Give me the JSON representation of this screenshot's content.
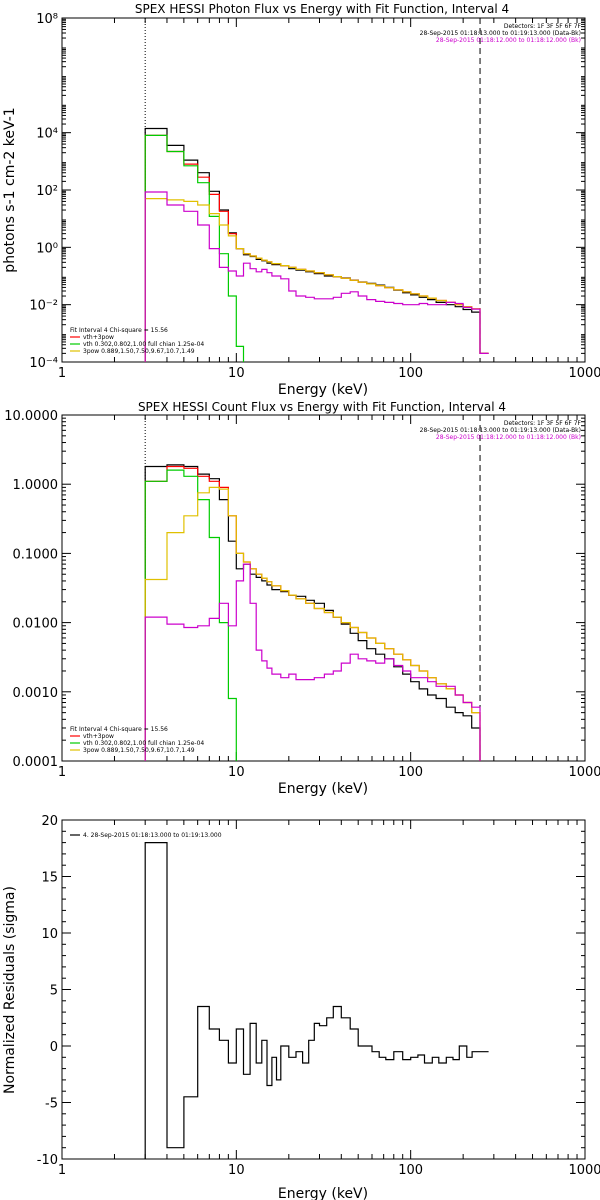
{
  "colors": {
    "data": "#000000",
    "total": "#ff0000",
    "vth": "#00cc00",
    "pow": "#e0c000",
    "bkg": "#cc00cc"
  },
  "chart_data": [
    {
      "type": "line",
      "title": "SPEX HESSI Photon Flux vs Energy with Fit Function, Interval 4",
      "xlabel": "Energy (keV)",
      "ylabel": "photons s-1 cm-2 keV-1",
      "xscale": "log",
      "yscale": "log",
      "xlim": [
        1,
        1000
      ],
      "ylim": [
        0.0001,
        100000000
      ],
      "xticks": [
        {
          "v": 1,
          "t": "1"
        },
        {
          "v": 10,
          "t": "10"
        },
        {
          "v": 100,
          "t": "100"
        },
        {
          "v": 1000,
          "t": "1000"
        }
      ],
      "yticks": [
        {
          "v": 0.0001,
          "t": "10⁻⁴"
        },
        {
          "v": 0.01,
          "t": "10⁻²"
        },
        {
          "v": 1,
          "t": "10⁰"
        },
        {
          "v": 100,
          "t": "10²"
        },
        {
          "v": 10000,
          "t": "10⁴"
        },
        {
          "v": 100000000,
          "t": "10⁸"
        }
      ],
      "vlines": [
        {
          "x": 3,
          "style": "dotted"
        },
        {
          "x": 250,
          "style": "dashed"
        }
      ],
      "header_right": [
        "Detectors: 1F 3F 5F 6F 7F",
        "28-Sep-2015 01:18:13.000 to 01:19:13.000 (Data-Bk)",
        "28-Sep-2015 01:18:12.000 to 01:18:12.000 (Bk)"
      ],
      "header_right_colors": [
        "#000000",
        "#000000",
        "#cc00cc"
      ],
      "legend_title": "Fit Interval 4   Chi-square = 15.56",
      "legend": [
        {
          "label": "vth+3pow",
          "color": "#ff0000"
        },
        {
          "label": "vth 0.302,0.802,1.00  full chian 1.25e-04",
          "color": "#00cc00"
        },
        {
          "label": "3pow 0.889,1.50,7.50,9.67,10.7,1.49",
          "color": "#e0c000"
        }
      ],
      "series": [
        {
          "name": "Data-Bk",
          "color": "#000000",
          "step": true,
          "x": [
            3,
            4,
            5,
            6,
            7,
            8,
            9,
            10,
            11,
            12,
            13,
            14,
            15,
            16,
            18,
            20,
            22,
            25,
            28,
            32,
            36,
            40,
            45,
            50,
            56,
            63,
            71,
            80,
            90,
            100,
            112,
            125,
            140,
            160,
            180,
            200,
            224,
            250
          ],
          "y": [
            14000,
            3600,
            1100,
            400,
            90,
            20,
            3.2,
            0.9,
            0.55,
            0.48,
            0.38,
            0.34,
            0.28,
            0.25,
            0.23,
            0.18,
            0.16,
            0.14,
            0.12,
            0.1,
            0.095,
            0.085,
            0.072,
            0.062,
            0.055,
            0.048,
            0.04,
            0.032,
            0.026,
            0.022,
            0.018,
            0.015,
            0.012,
            0.01,
            0.0085,
            0.0068,
            0.0055,
            0.0002
          ]
        },
        {
          "name": "vth+3pow",
          "color": "#ff0000",
          "step": true,
          "x": [
            3,
            4,
            5,
            6,
            7,
            8,
            9,
            10,
            11,
            12,
            13,
            14,
            15,
            16,
            18,
            20,
            22,
            25,
            28,
            32,
            36,
            40,
            45,
            50,
            56,
            63,
            71,
            80,
            90,
            100,
            112,
            125,
            140,
            160,
            180,
            200,
            224,
            250
          ],
          "y": [
            8000,
            2200,
            800,
            280,
            70,
            18,
            3,
            0.9,
            0.6,
            0.5,
            0.42,
            0.36,
            0.31,
            0.27,
            0.23,
            0.2,
            0.17,
            0.15,
            0.13,
            0.11,
            0.095,
            0.083,
            0.071,
            0.061,
            0.053,
            0.046,
            0.039,
            0.033,
            0.028,
            0.024,
            0.02,
            0.017,
            0.014,
            0.012,
            0.01,
            0.0085,
            0.0072,
            0.0002
          ]
        },
        {
          "name": "vth",
          "color": "#00cc00",
          "step": true,
          "x": [
            3,
            4,
            5,
            6,
            7,
            8,
            9,
            10,
            11
          ],
          "y": [
            8000,
            2200,
            700,
            180,
            12,
            0.6,
            0.02,
            0.00035,
            5e-05
          ]
        },
        {
          "name": "3pow",
          "color": "#e0c000",
          "step": true,
          "x": [
            3,
            4,
            5,
            6,
            7,
            8,
            9,
            10,
            11,
            12,
            13,
            14,
            15,
            16,
            18,
            20,
            22,
            25,
            28,
            32,
            36,
            40,
            45,
            50,
            56,
            63,
            71,
            80,
            90,
            100,
            112,
            125,
            140,
            160,
            180,
            200,
            224,
            250
          ],
          "y": [
            50,
            45,
            40,
            30,
            15,
            6,
            2.5,
            0.9,
            0.6,
            0.5,
            0.42,
            0.36,
            0.31,
            0.27,
            0.23,
            0.2,
            0.17,
            0.15,
            0.13,
            0.11,
            0.095,
            0.083,
            0.071,
            0.061,
            0.053,
            0.046,
            0.039,
            0.033,
            0.028,
            0.024,
            0.02,
            0.017,
            0.014,
            0.012,
            0.01,
            0.0085,
            0.0072,
            0.0002
          ]
        },
        {
          "name": "Bk",
          "color": "#cc00cc",
          "step": true,
          "x": [
            3,
            4,
            5,
            6,
            7,
            8,
            9,
            10,
            11,
            12,
            13,
            14,
            15,
            16,
            18,
            20,
            22,
            25,
            28,
            32,
            36,
            40,
            45,
            50,
            56,
            63,
            71,
            80,
            90,
            100,
            112,
            125,
            140,
            160,
            180,
            200,
            224,
            250
          ],
          "y": [
            85,
            30,
            18,
            6,
            0.9,
            0.2,
            0.15,
            0.1,
            0.28,
            0.18,
            0.14,
            0.17,
            0.13,
            0.1,
            0.08,
            0.03,
            0.02,
            0.018,
            0.016,
            0.016,
            0.018,
            0.025,
            0.028,
            0.02,
            0.015,
            0.013,
            0.012,
            0.011,
            0.01,
            0.01,
            0.011,
            0.01,
            0.01,
            0.012,
            0.011,
            0.008,
            0.007,
            0.0002
          ]
        }
      ]
    },
    {
      "type": "line",
      "title": "SPEX HESSI Count Flux vs Energy with Fit Function, Interval 4",
      "xlabel": "Energy (keV)",
      "ylabel": "",
      "xscale": "log",
      "yscale": "log",
      "xlim": [
        1,
        1000
      ],
      "ylim": [
        0.0001,
        10
      ],
      "xticks": [
        {
          "v": 1,
          "t": "1"
        },
        {
          "v": 10,
          "t": "10"
        },
        {
          "v": 100,
          "t": "100"
        },
        {
          "v": 1000,
          "t": "1000"
        }
      ],
      "yticks": [
        {
          "v": 0.0001,
          "t": "0.0001"
        },
        {
          "v": 0.001,
          "t": "0.0010"
        },
        {
          "v": 0.01,
          "t": "0.0100"
        },
        {
          "v": 0.1,
          "t": "0.1000"
        },
        {
          "v": 1,
          "t": "1.0000"
        },
        {
          "v": 10,
          "t": "10.0000"
        }
      ],
      "vlines": [
        {
          "x": 3,
          "style": "dotted"
        },
        {
          "x": 250,
          "style": "dashed"
        }
      ],
      "header_right": [
        "Detectors: 1F 3F 5F 6F 7F",
        "28-Sep-2015 01:18:13.000 to 01:19:13.000 (Data-Bk)",
        "28-Sep-2015 01:18:12.000 to 01:18:12.000 (Bk)"
      ],
      "header_right_colors": [
        "#000000",
        "#000000",
        "#cc00cc"
      ],
      "legend_title": "Fit Interval 4   Chi-square = 15.56",
      "legend": [
        {
          "label": "vth+3pow",
          "color": "#ff0000"
        },
        {
          "label": "vth 0.302,0.802,1.00  full chian 1.25e-04",
          "color": "#00cc00"
        },
        {
          "label": "3pow 0.889,1.50,7.50,9.67,10.7,1.49",
          "color": "#e0c000"
        }
      ],
      "series": [
        {
          "name": "Data-Bk",
          "color": "#000000",
          "step": true,
          "x": [
            3,
            4,
            5,
            6,
            7,
            8,
            9,
            10,
            11,
            12,
            13,
            14,
            15,
            16,
            18,
            20,
            22,
            25,
            28,
            32,
            36,
            40,
            45,
            50,
            56,
            63,
            71,
            80,
            90,
            100,
            112,
            125,
            140,
            160,
            180,
            200,
            224,
            250
          ],
          "y": [
            1.8,
            1.9,
            1.8,
            1.4,
            1.2,
            0.6,
            0.15,
            0.06,
            0.07,
            0.05,
            0.045,
            0.04,
            0.035,
            0.03,
            0.028,
            0.025,
            0.024,
            0.021,
            0.019,
            0.015,
            0.012,
            0.0095,
            0.007,
            0.0055,
            0.0042,
            0.0035,
            0.003,
            0.0023,
            0.0018,
            0.0014,
            0.0011,
            0.0009,
            0.0008,
            0.0006,
            0.0005,
            0.00045,
            0.0003,
            5e-05
          ]
        },
        {
          "name": "vth+3pow",
          "color": "#ff0000",
          "step": true,
          "x": [
            3,
            4,
            5,
            6,
            7,
            8,
            9,
            10,
            11,
            12,
            13,
            14,
            15,
            16,
            18,
            20,
            22,
            25,
            28,
            32,
            36,
            40,
            45,
            50,
            56,
            63,
            71,
            80,
            90,
            100,
            112,
            125,
            140,
            160,
            180,
            200,
            224,
            250
          ],
          "y": [
            1.1,
            1.8,
            1.7,
            1.3,
            1.1,
            0.9,
            0.35,
            0.1,
            0.075,
            0.06,
            0.05,
            0.044,
            0.039,
            0.034,
            0.029,
            0.025,
            0.022,
            0.019,
            0.016,
            0.014,
            0.012,
            0.01,
            0.0085,
            0.0072,
            0.006,
            0.005,
            0.0042,
            0.0035,
            0.0029,
            0.0024,
            0.002,
            0.0016,
            0.0013,
            0.0011,
            0.0009,
            0.0007,
            0.0005,
            5e-05
          ]
        },
        {
          "name": "vth",
          "color": "#00cc00",
          "step": true,
          "x": [
            3,
            4,
            5,
            6,
            7,
            8,
            9,
            10,
            11
          ],
          "y": [
            1.1,
            1.6,
            1.3,
            0.6,
            0.17,
            0.01,
            0.0008,
            8e-05,
            3e-05
          ]
        },
        {
          "name": "3pow",
          "color": "#e0c000",
          "step": true,
          "x": [
            3,
            4,
            5,
            6,
            7,
            8,
            9,
            10,
            11,
            12,
            13,
            14,
            15,
            16,
            18,
            20,
            22,
            25,
            28,
            32,
            36,
            40,
            45,
            50,
            56,
            63,
            71,
            80,
            90,
            100,
            112,
            125,
            140,
            160,
            180,
            200,
            224,
            250
          ],
          "y": [
            0.042,
            0.2,
            0.35,
            0.75,
            0.9,
            0.85,
            0.35,
            0.1,
            0.075,
            0.06,
            0.05,
            0.044,
            0.039,
            0.034,
            0.029,
            0.025,
            0.022,
            0.019,
            0.016,
            0.014,
            0.012,
            0.01,
            0.0085,
            0.0072,
            0.006,
            0.005,
            0.0042,
            0.0035,
            0.0029,
            0.0024,
            0.002,
            0.0016,
            0.0013,
            0.0011,
            0.0009,
            0.0007,
            0.0005,
            5e-05
          ]
        },
        {
          "name": "Bk",
          "color": "#cc00cc",
          "step": true,
          "x": [
            3,
            4,
            5,
            6,
            7,
            8,
            9,
            10,
            11,
            12,
            13,
            14,
            15,
            16,
            18,
            20,
            22,
            25,
            28,
            32,
            36,
            40,
            45,
            50,
            56,
            63,
            71,
            80,
            90,
            100,
            112,
            125,
            140,
            160,
            180,
            200,
            224,
            250
          ],
          "y": [
            0.012,
            0.0095,
            0.0085,
            0.009,
            0.0115,
            0.019,
            0.009,
            0.04,
            0.07,
            0.019,
            0.004,
            0.0028,
            0.0022,
            0.0018,
            0.0016,
            0.0018,
            0.0015,
            0.0015,
            0.0016,
            0.0018,
            0.002,
            0.0026,
            0.0035,
            0.003,
            0.0028,
            0.0026,
            0.003,
            0.0024,
            0.002,
            0.0016,
            0.0016,
            0.0014,
            0.0012,
            0.0012,
            0.0009,
            0.0007,
            0.0006,
            5e-05
          ]
        }
      ]
    },
    {
      "type": "line",
      "title": "",
      "xlabel": "Energy (keV)",
      "ylabel": "Normalized Residuals (sigma)",
      "xscale": "log",
      "yscale": "linear",
      "xlim": [
        1,
        1000
      ],
      "ylim": [
        -10,
        20
      ],
      "xticks": [
        {
          "v": 1,
          "t": "1"
        },
        {
          "v": 10,
          "t": "10"
        },
        {
          "v": 100,
          "t": "100"
        },
        {
          "v": 1000,
          "t": "1000"
        }
      ],
      "yticks": [
        {
          "v": -10,
          "t": "-10"
        },
        {
          "v": -5,
          "t": "-5"
        },
        {
          "v": 0,
          "t": "0"
        },
        {
          "v": 5,
          "t": "5"
        },
        {
          "v": 10,
          "t": "10"
        },
        {
          "v": 15,
          "t": "15"
        },
        {
          "v": 20,
          "t": "20"
        }
      ],
      "vlines": [],
      "header_right": [],
      "header_right_colors": [],
      "legend_title": "",
      "legend": [
        {
          "label": "4. 28-Sep-2015 01:18:13.000 to 01:19:13.000",
          "color": "#000000"
        }
      ],
      "series": [
        {
          "name": "residuals",
          "color": "#000000",
          "step": true,
          "x": [
            3,
            4,
            5,
            6,
            7,
            8,
            9,
            10,
            11,
            12,
            13,
            14,
            15,
            16,
            17,
            18,
            20,
            22,
            24,
            26,
            28,
            30,
            33,
            36,
            40,
            45,
            50,
            55,
            60,
            66,
            72,
            80,
            90,
            100,
            110,
            120,
            133,
            145,
            160,
            175,
            190,
            210,
            225,
            250
          ],
          "y": [
            18,
            -9,
            -4.5,
            3.5,
            1.5,
            0.5,
            -1.5,
            1.5,
            -2.5,
            2,
            -1.5,
            0.5,
            -3.5,
            -1,
            -3,
            0,
            -1,
            -0.5,
            -1.5,
            0.5,
            2,
            1.8,
            2.5,
            3.5,
            2.5,
            1.5,
            0,
            0,
            -0.5,
            -1,
            -1.2,
            -0.5,
            -1.2,
            -1,
            -0.8,
            -1.5,
            -1,
            -1.5,
            -1,
            -1.2,
            0,
            -1,
            -0.5,
            -0.5
          ]
        }
      ]
    }
  ]
}
